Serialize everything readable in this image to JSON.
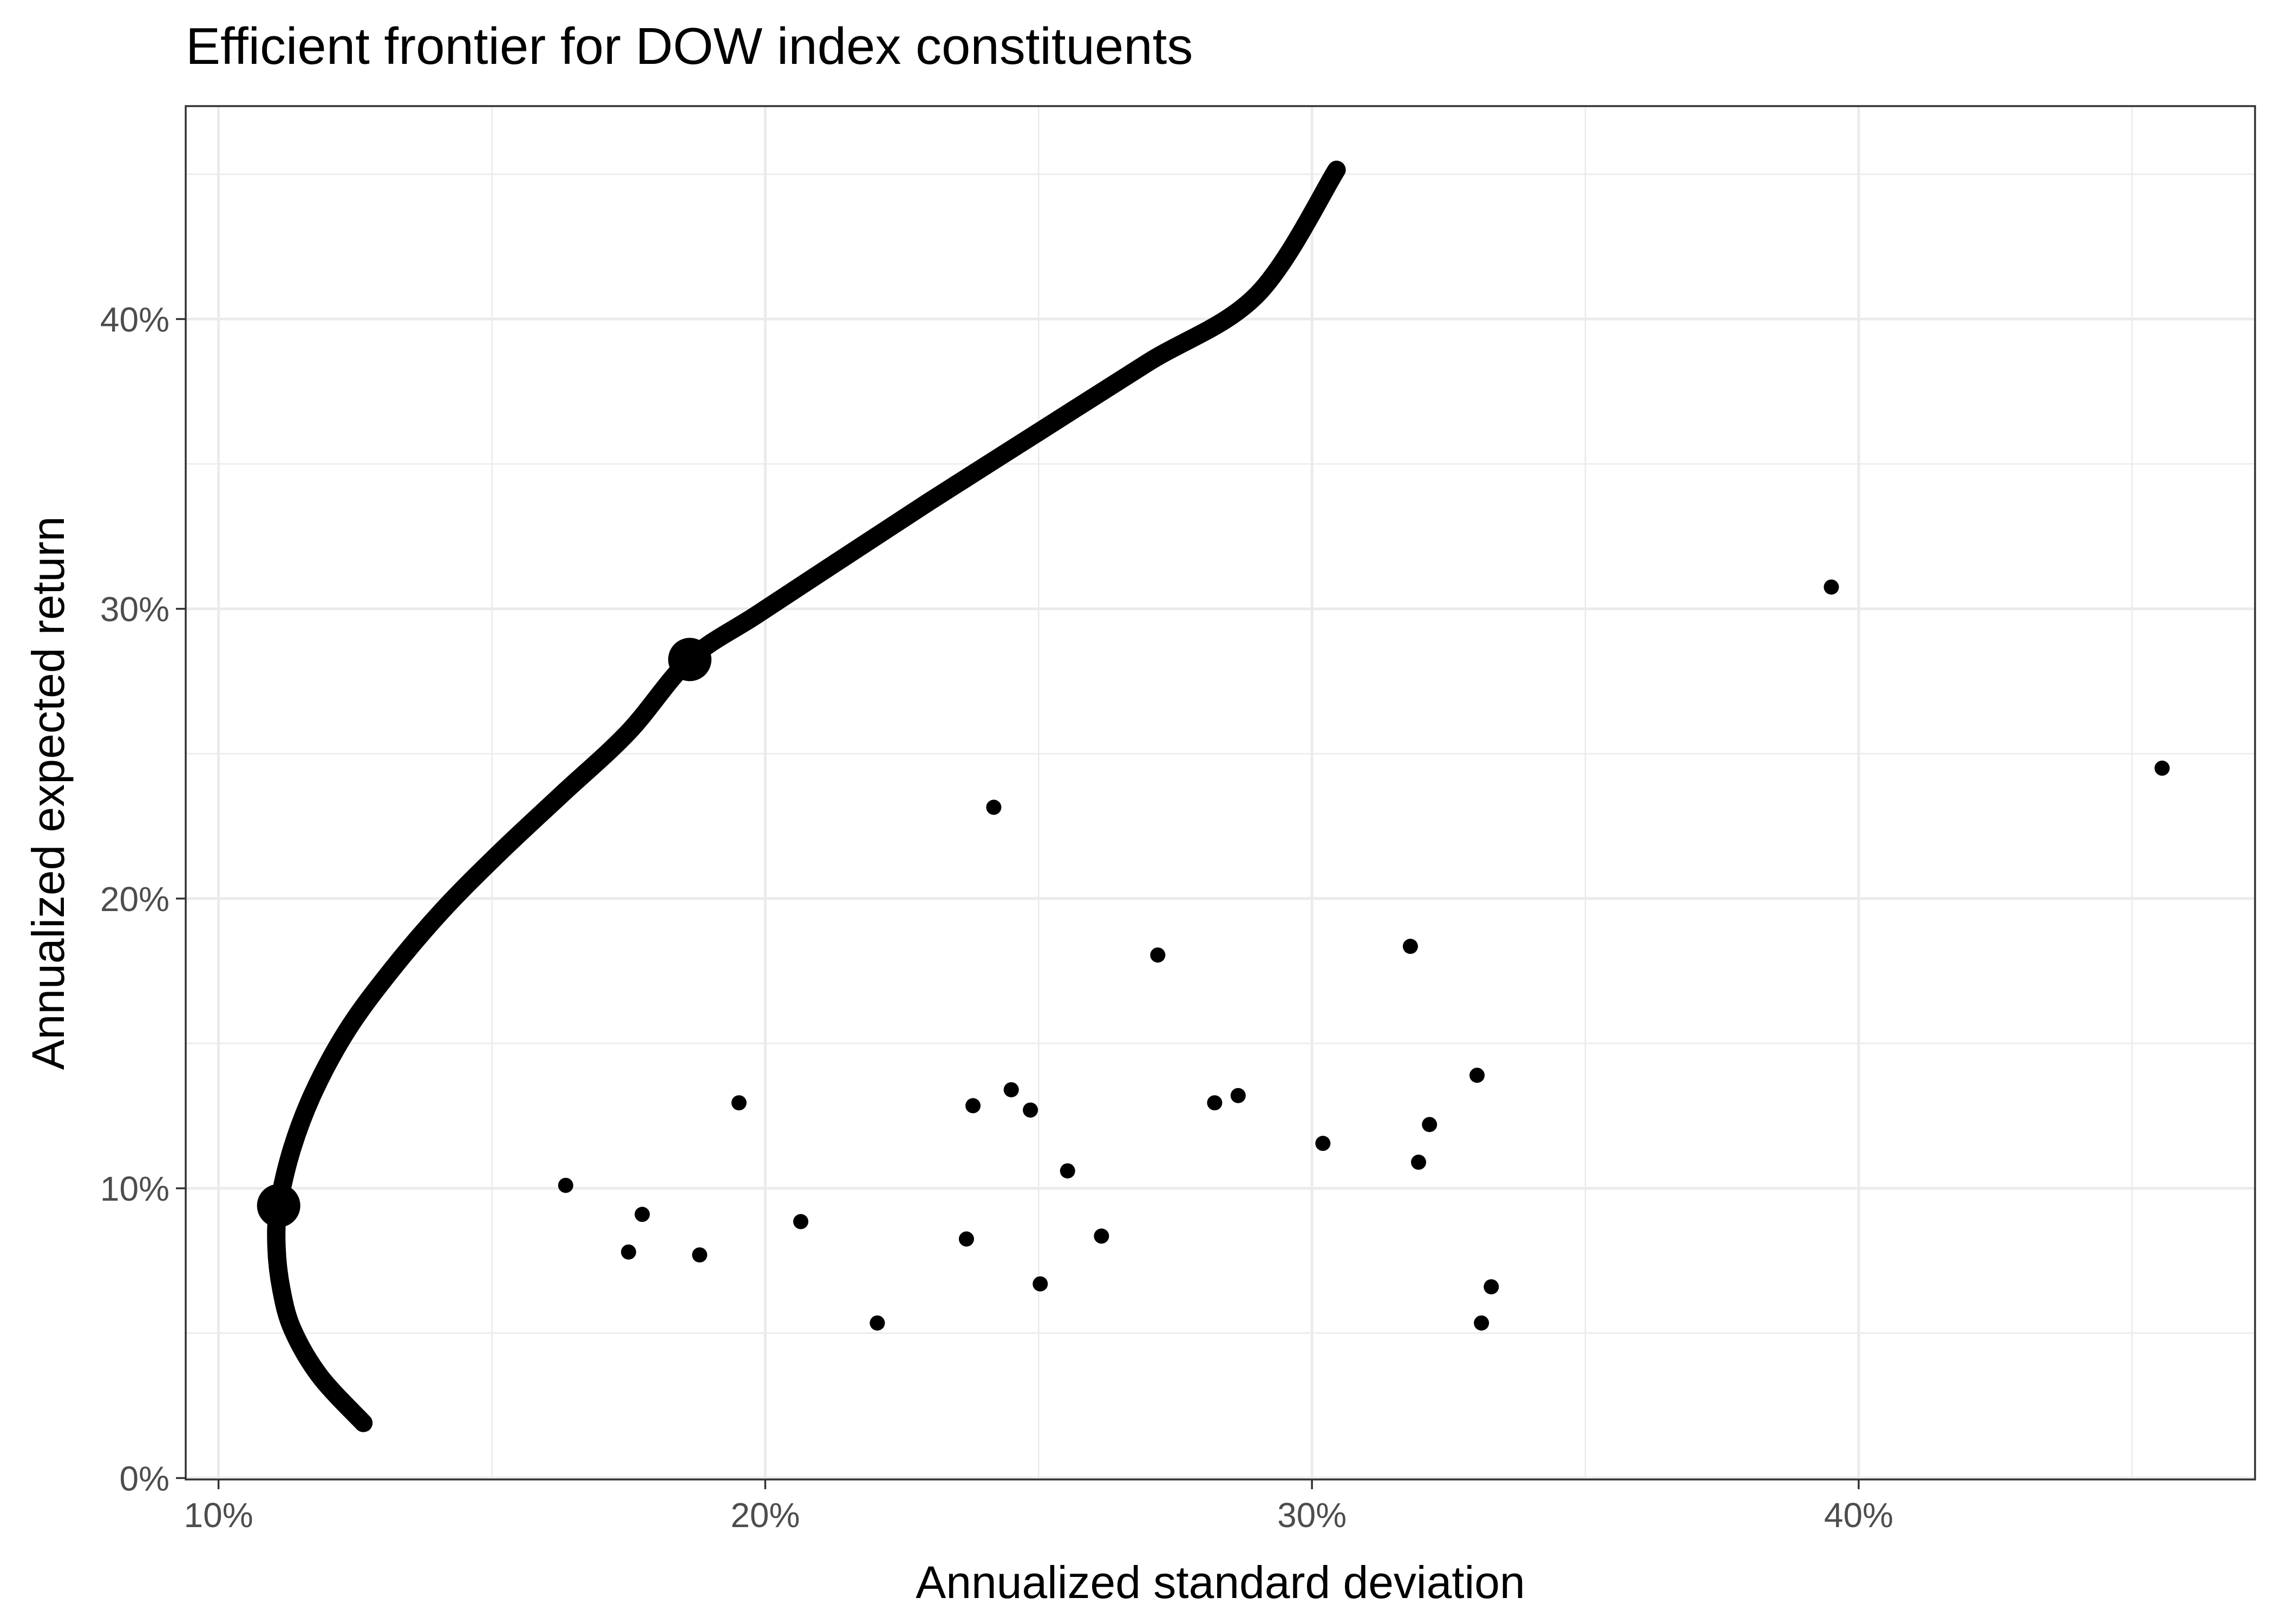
{
  "chart_data": {
    "type": "scatter",
    "title": "Efficient frontier for DOW index constituents",
    "xlabel": "Annualized standard deviation",
    "ylabel": "Annualized expected return",
    "xlim": [
      0.094,
      0.4725
    ],
    "ylim": [
      -0.0005,
      0.4735
    ],
    "x_ticks": [
      {
        "value": 0.1,
        "label": "10%"
      },
      {
        "value": 0.2,
        "label": "20%"
      },
      {
        "value": 0.3,
        "label": "30%"
      },
      {
        "value": 0.4,
        "label": "40%"
      }
    ],
    "y_ticks": [
      {
        "value": 0.0,
        "label": "0%"
      },
      {
        "value": 0.1,
        "label": "10%"
      },
      {
        "value": 0.2,
        "label": "20%"
      },
      {
        "value": 0.3,
        "label": "30%"
      },
      {
        "value": 0.4,
        "label": "40%"
      }
    ],
    "grid": true,
    "legend": "none",
    "series": [
      {
        "kind": "stocks",
        "points": [
          {
            "x": 0.1635,
            "y": 0.101
          },
          {
            "x": 0.175,
            "y": 0.078
          },
          {
            "x": 0.1775,
            "y": 0.091
          },
          {
            "x": 0.188,
            "y": 0.077
          },
          {
            "x": 0.1952,
            "y": 0.1295
          },
          {
            "x": 0.2065,
            "y": 0.0885
          },
          {
            "x": 0.2205,
            "y": 0.0535
          },
          {
            "x": 0.2368,
            "y": 0.0825
          },
          {
            "x": 0.238,
            "y": 0.1285
          },
          {
            "x": 0.2418,
            "y": 0.2315
          },
          {
            "x": 0.245,
            "y": 0.134
          },
          {
            "x": 0.2485,
            "y": 0.127
          },
          {
            "x": 0.2503,
            "y": 0.067
          },
          {
            "x": 0.2553,
            "y": 0.106
          },
          {
            "x": 0.2615,
            "y": 0.0835
          },
          {
            "x": 0.2718,
            "y": 0.1805
          },
          {
            "x": 0.2822,
            "y": 0.1295
          },
          {
            "x": 0.2865,
            "y": 0.132
          },
          {
            "x": 0.302,
            "y": 0.1155
          },
          {
            "x": 0.318,
            "y": 0.1835
          },
          {
            "x": 0.3195,
            "y": 0.109
          },
          {
            "x": 0.3215,
            "y": 0.122
          },
          {
            "x": 0.3302,
            "y": 0.139
          },
          {
            "x": 0.331,
            "y": 0.0535
          },
          {
            "x": 0.3328,
            "y": 0.066
          },
          {
            "x": 0.395,
            "y": 0.3075
          },
          {
            "x": 0.4555,
            "y": 0.245
          }
        ]
      },
      {
        "kind": "efficient-frontier",
        "points": [
          {
            "x": 0.1265,
            "y": 0.019
          },
          {
            "x": 0.1186,
            "y": 0.035
          },
          {
            "x": 0.1136,
            "y": 0.051
          },
          {
            "x": 0.1115,
            "y": 0.065
          },
          {
            "x": 0.1106,
            "y": 0.08
          },
          {
            "x": 0.111,
            "y": 0.094
          },
          {
            "x": 0.1135,
            "y": 0.114
          },
          {
            "x": 0.1176,
            "y": 0.134
          },
          {
            "x": 0.1237,
            "y": 0.155
          },
          {
            "x": 0.1315,
            "y": 0.175
          },
          {
            "x": 0.141,
            "y": 0.196
          },
          {
            "x": 0.1515,
            "y": 0.216
          },
          {
            "x": 0.1628,
            "y": 0.236
          },
          {
            "x": 0.175,
            "y": 0.2575
          },
          {
            "x": 0.1862,
            "y": 0.2825
          },
          {
            "x": 0.1985,
            "y": 0.298
          },
          {
            "x": 0.213,
            "y": 0.316
          },
          {
            "x": 0.23,
            "y": 0.337
          },
          {
            "x": 0.25,
            "y": 0.361
          },
          {
            "x": 0.27,
            "y": 0.385
          },
          {
            "x": 0.29,
            "y": 0.4085
          },
          {
            "x": 0.3045,
            "y": 0.4515
          }
        ]
      },
      {
        "kind": "highlighted-portfolios",
        "points": [
          {
            "x": 0.111,
            "y": 0.094
          },
          {
            "x": 0.1862,
            "y": 0.2825
          }
        ]
      }
    ]
  }
}
